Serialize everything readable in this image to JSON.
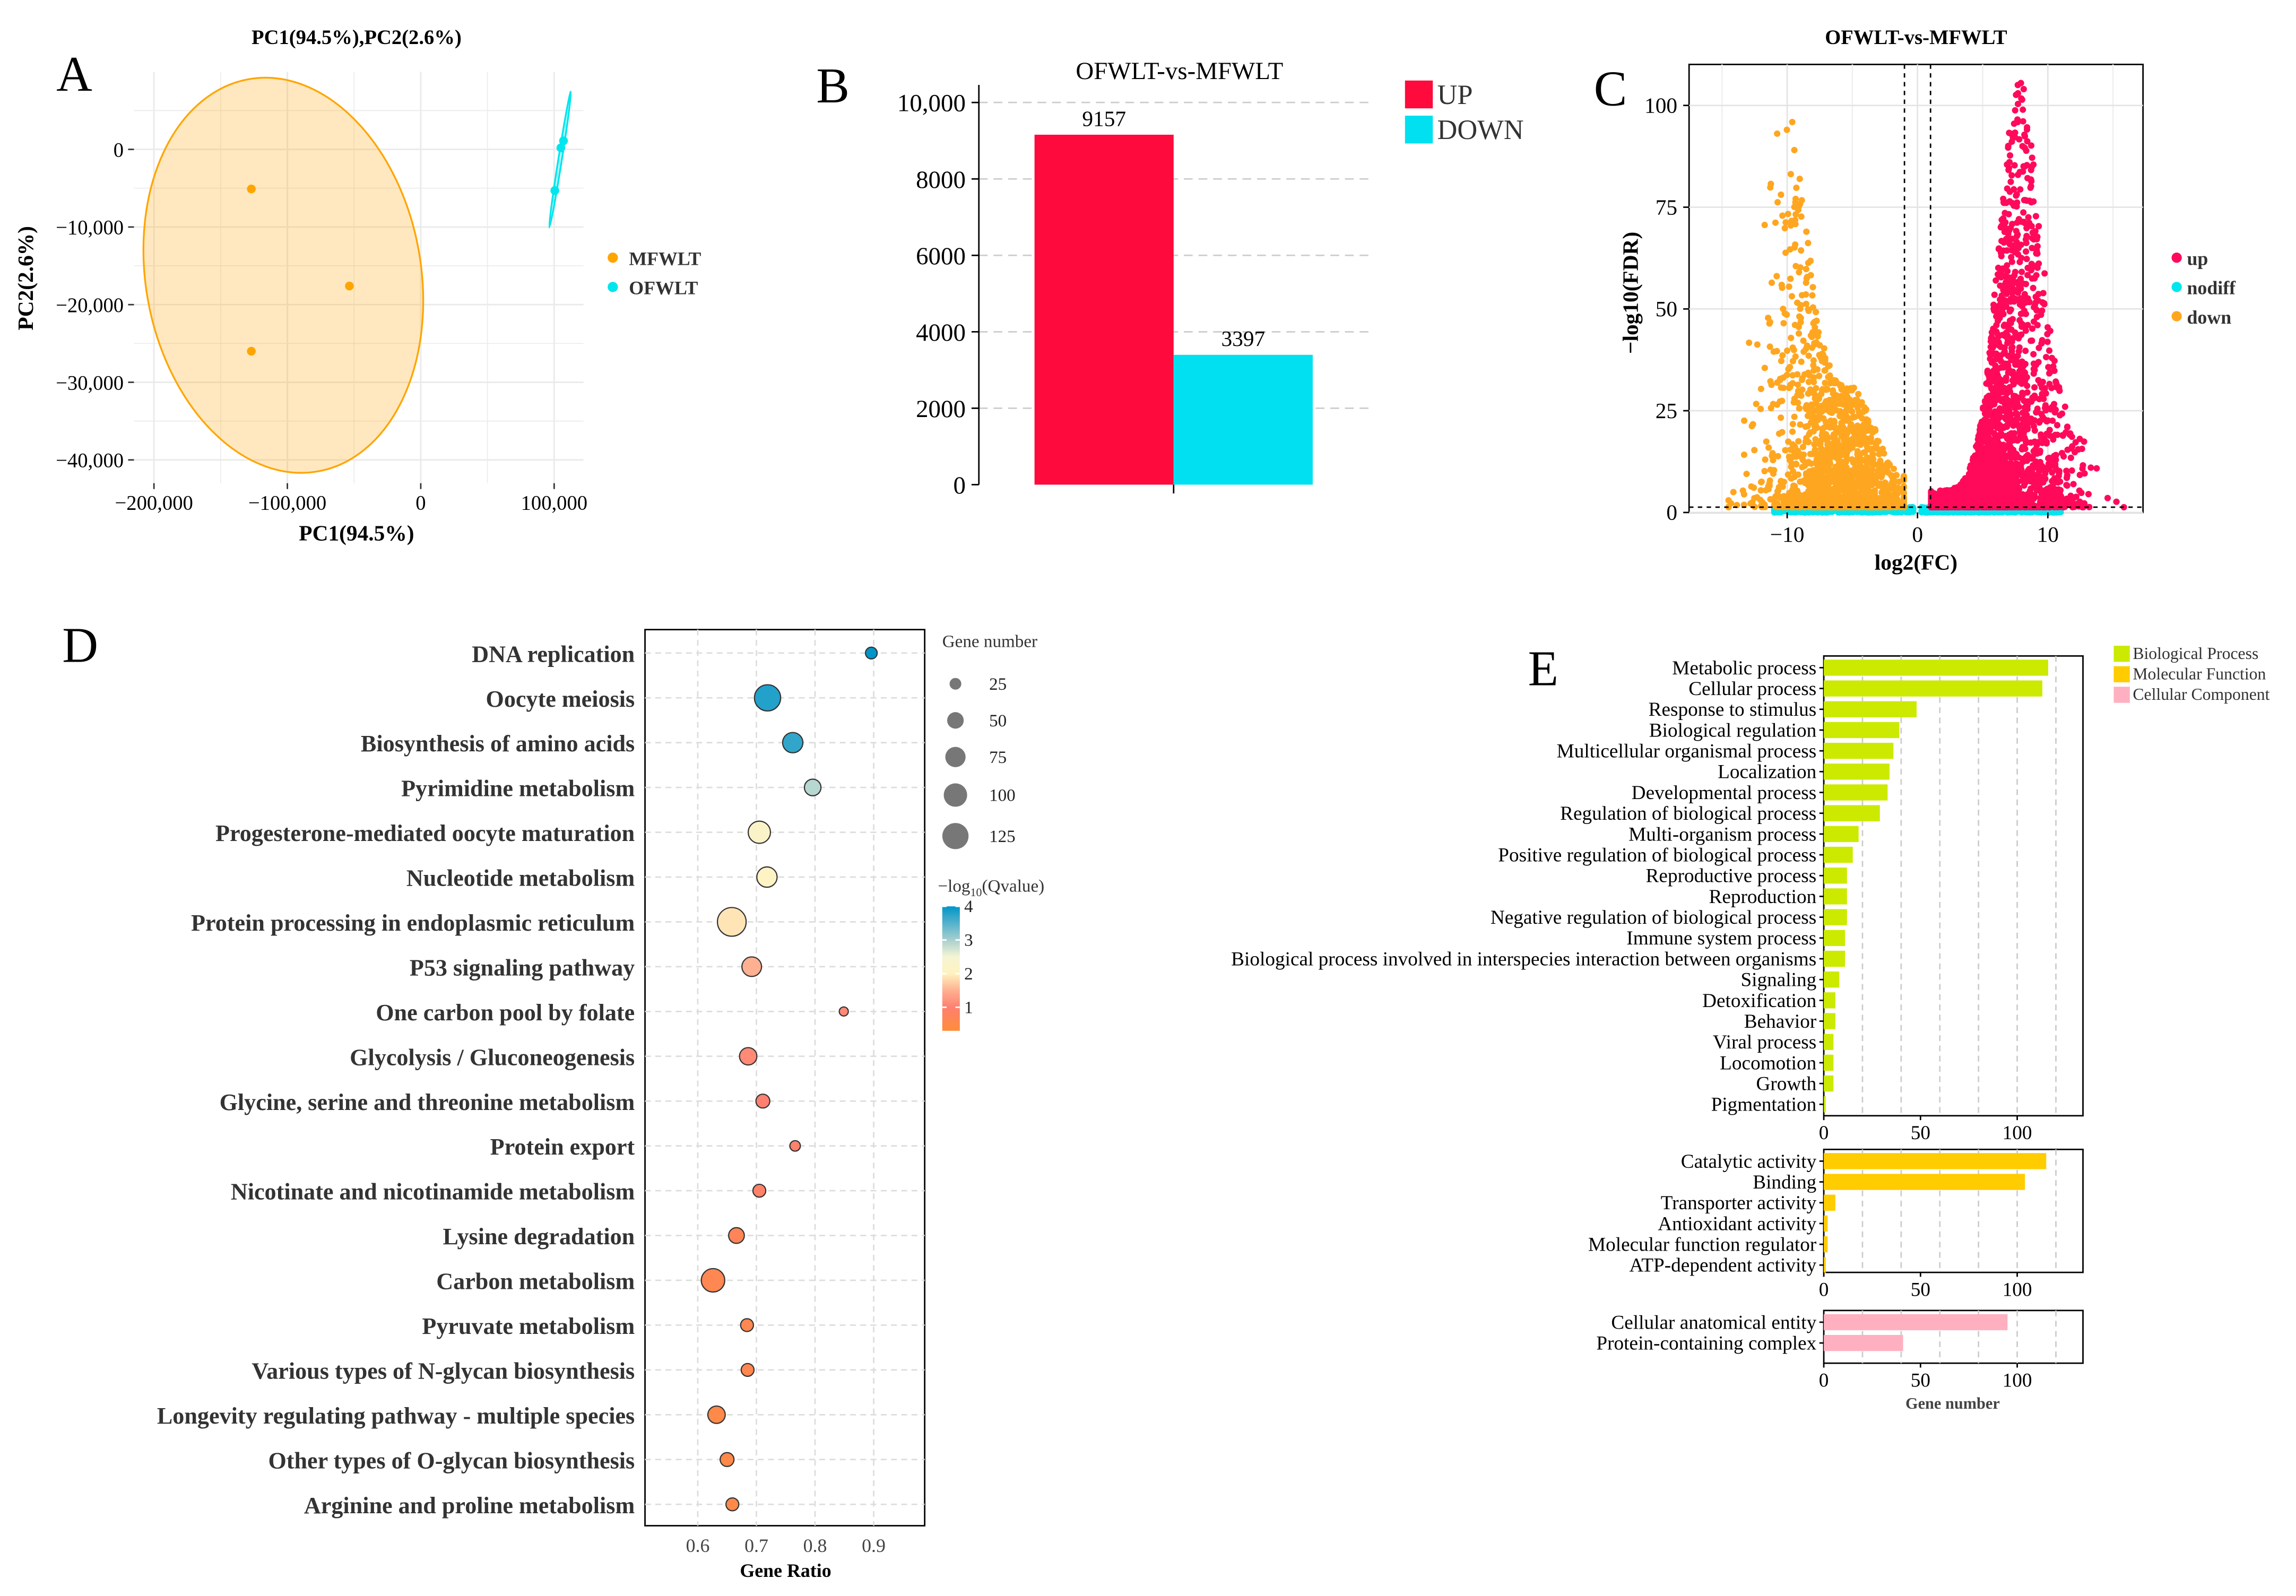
{
  "panel_letters": {
    "a": "A",
    "b": "B",
    "c": "C",
    "d": "D",
    "e": "E"
  },
  "chart_data": [
    {
      "type": "scatter",
      "title": "PC1(94.5%),PC2(2.6%)",
      "xlabel": "PC1(94.5%)",
      "ylabel": "PC2(2.6%)",
      "xlim": [
        -215000,
        122000
      ],
      "ylim": [
        -43000,
        10000
      ],
      "x_ticks": [
        -200000,
        -100000,
        0,
        100000
      ],
      "x_tick_labels": [
        "−200,000",
        "−100,000",
        "0",
        "100,000"
      ],
      "y_ticks": [
        0,
        -10000,
        -20000,
        -30000,
        -40000
      ],
      "y_tick_labels": [
        "0",
        "−10,000",
        "−20,000",
        "−30,000",
        "−40,000"
      ],
      "legend": "right",
      "series": [
        {
          "name": "MFWLT",
          "color": "#FFA500",
          "points": [
            [
              -127000,
              -5100
            ],
            [
              -53500,
              -17600
            ],
            [
              -127000,
              -26000
            ]
          ]
        },
        {
          "name": "OFWLT",
          "color": "#00E5EE",
          "points": [
            [
              100500,
              -5300
            ],
            [
              105000,
              200
            ],
            [
              107000,
              1100
            ]
          ]
        }
      ]
    },
    {
      "type": "bar",
      "title": "OFWLT-vs-MFWLT",
      "categories": [
        "UP",
        "DOWN"
      ],
      "values": [
        9157,
        3397
      ],
      "value_labels": [
        "9157",
        "3397"
      ],
      "colors": [
        "#FF0A3C",
        "#00E0F0"
      ],
      "ylim": [
        0,
        10500
      ],
      "y_ticks": [
        0,
        2000,
        4000,
        6000,
        8000,
        10000
      ],
      "y_tick_labels": [
        "0",
        "2000",
        "4000",
        "6000",
        "8000",
        "10,000"
      ],
      "legend": "top-right"
    },
    {
      "type": "scatter",
      "title": "OFWLT-vs-MFWLT",
      "xlabel": "log2(FC)",
      "ylabel": "−log10(FDR)",
      "xlim": [
        -17.4,
        17.4
      ],
      "ylim": [
        0,
        110
      ],
      "x_ticks": [
        -10,
        0,
        10
      ],
      "x_tick_labels": [
        "−10",
        "0",
        "10"
      ],
      "y_ticks": [
        0,
        25,
        50,
        75,
        100
      ],
      "y_tick_labels": [
        "0",
        "25",
        "50",
        "75",
        "100"
      ],
      "thresholds": {
        "log2fc": [
          -1,
          1
        ],
        "neg_log10_fdr": 1.3
      },
      "legend": "right",
      "series": [
        {
          "name": "up",
          "color": "#FF0A5A",
          "count": 9157
        },
        {
          "name": "nodiff",
          "color": "#00E5EE"
        },
        {
          "name": "down",
          "color": "#FFA620",
          "count": 3397
        }
      ]
    },
    {
      "type": "scatter",
      "xlabel": "Gene Ratio",
      "xlim": [
        0.51,
        0.987
      ],
      "x_ticks": [
        0.6,
        0.7,
        0.8,
        0.9
      ],
      "x_tick_labels": [
        "0.6",
        "0.7",
        "0.8",
        "0.9"
      ],
      "size_legend_title": "Gene number",
      "size_legend": [
        25,
        50,
        75,
        100,
        125
      ],
      "size_legend_labels": [
        "25",
        "50",
        "75",
        "100",
        "125"
      ],
      "color_legend_title": "−log",
      "color_legend_sub": "10",
      "color_legend_tail": "(Qvalue)",
      "color_ticks": [
        1,
        2,
        3,
        4
      ],
      "color_tick_labels": [
        "1",
        "2",
        "3",
        "4"
      ],
      "legend": "right",
      "categories": [
        "DNA replication",
        "Oocyte meiosis",
        "Biosynthesis of amino acids",
        "Pyrimidine metabolism",
        "Progesterone-mediated oocyte maturation",
        "Nucleotide metabolism",
        "Protein processing in endoplasmic reticulum",
        "P53 signaling pathway",
        "One carbon pool by folate",
        "Glycolysis / Gluconeogenesis",
        "Glycine, serine and threonine metabolism",
        "Protein export",
        "Nicotinate and nicotinamide metabolism",
        "Lysine degradation",
        "Carbon metabolism",
        "Pyruvate metabolism",
        "Various types of N-glycan biosynthesis",
        "Longevity regulating pathway - multiple species",
        "Other types of O-glycan biosynthesis",
        "Arginine and proline metabolism"
      ],
      "gene_ratio": [
        0.896,
        0.719,
        0.762,
        0.796,
        0.705,
        0.718,
        0.658,
        0.692,
        0.849,
        0.686,
        0.711,
        0.766,
        0.705,
        0.666,
        0.626,
        0.684,
        0.685,
        0.632,
        0.65,
        0.659
      ],
      "gene_number": [
        25,
        125,
        75,
        50,
        90,
        75,
        150,
        70,
        15,
        55,
        35,
        20,
        30,
        45,
        100,
        30,
        30,
        55,
        35,
        30
      ],
      "neg_log10_q": [
        4.0,
        3.8,
        3.7,
        2.9,
        2.2,
        2.1,
        1.9,
        1.5,
        1.1,
        1.1,
        1.0,
        0.95,
        0.9,
        0.7,
        0.6,
        0.6,
        0.6,
        0.5,
        0.5,
        0.5
      ]
    },
    {
      "type": "bar",
      "orientation": "horizontal",
      "xlabel": "Gene number",
      "xlim": [
        0,
        134
      ],
      "x_ticks": [
        0,
        50,
        100
      ],
      "x_tick_labels": [
        "0",
        "50",
        "100"
      ],
      "legend": "top-right",
      "series": [
        {
          "name": "Biological Process",
          "color": "#CCEA00",
          "categories": [
            "Metabolic process",
            "Cellular process",
            "Response to stimulus",
            "Biological regulation",
            "Multicellular organismal process",
            "Localization",
            "Developmental process",
            "Regulation of biological process",
            "Multi-organism process",
            "Positive regulation of biological process",
            "Reproductive process",
            "Reproduction",
            "Negative regulation of biological process",
            "Immune system process",
            "Biological process involved in interspecies interaction between organisms",
            "Signaling",
            "Detoxification",
            "Behavior",
            "Viral process",
            "Locomotion",
            "Growth",
            "Pigmentation"
          ],
          "values": [
            116,
            113,
            48,
            39,
            36,
            34,
            33,
            29,
            18,
            15,
            12,
            12,
            12,
            11,
            11,
            8,
            6,
            6,
            5,
            5,
            5,
            1
          ]
        },
        {
          "name": "Molecular Function",
          "color": "#FFCC00",
          "categories": [
            "Catalytic activity",
            "Binding",
            "Transporter activity",
            "Antioxidant activity",
            "Molecular function regulator",
            "ATP-dependent activity"
          ],
          "values": [
            115,
            104,
            6,
            2,
            2,
            1
          ]
        },
        {
          "name": "Cellular Component",
          "color": "#FFB0C0",
          "categories": [
            "Cellular anatomical entity",
            "Protein-containing complex"
          ],
          "values": [
            95,
            41
          ]
        }
      ]
    }
  ]
}
